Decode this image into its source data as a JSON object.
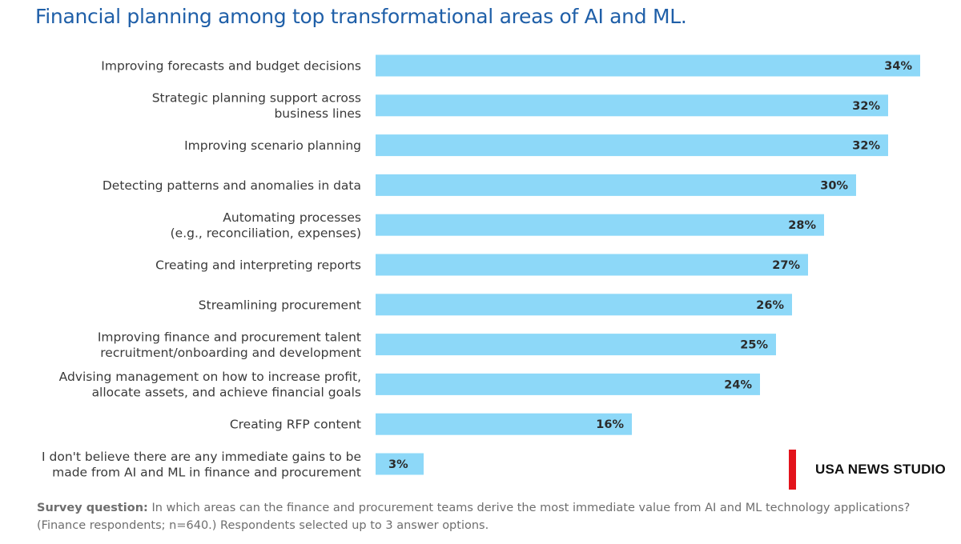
{
  "chart_data": {
    "type": "bar",
    "orientation": "horizontal",
    "title": "Financial planning among top transformational areas of AI and ML.",
    "categories": [
      [
        "Improving forecasts and budget decisions"
      ],
      [
        "Strategic planning support across",
        "business lines"
      ],
      [
        "Improving scenario planning"
      ],
      [
        "Detecting patterns and anomalies in data"
      ],
      [
        "Automating processes",
        "(e.g., reconciliation, expenses)"
      ],
      [
        "Creating and interpreting reports"
      ],
      [
        "Streamlining procurement"
      ],
      [
        "Improving finance and procurement talent",
        "recruitment/onboarding and development"
      ],
      [
        "Advising management on how to increase profit,",
        "allocate assets, and achieve financial goals"
      ],
      [
        "Creating RFP content"
      ],
      [
        "I don't believe there are any immediate gains to be",
        "made from AI and ML in finance and procurement"
      ]
    ],
    "values": [
      34,
      32,
      32,
      30,
      28,
      27,
      26,
      25,
      24,
      16,
      3
    ],
    "value_labels": [
      "34%",
      "32%",
      "32%",
      "30%",
      "28%",
      "27%",
      "26%",
      "25%",
      "24%",
      "16%",
      "3%"
    ],
    "unit": "%",
    "xlim": [
      0,
      35
    ],
    "bar_color": "#8dd8f8",
    "xlabel": "",
    "ylabel": ""
  },
  "footnote": {
    "label": "Survey question:",
    "text": " In which areas can the finance and procurement teams derive the most immediate value from AI and ML technology applications? (Finance respondents; n=640.) Respondents selected up to 3 answer options."
  },
  "watermark": {
    "text": "USA NEWS STUDIO",
    "accent_color": "#e3131b"
  }
}
